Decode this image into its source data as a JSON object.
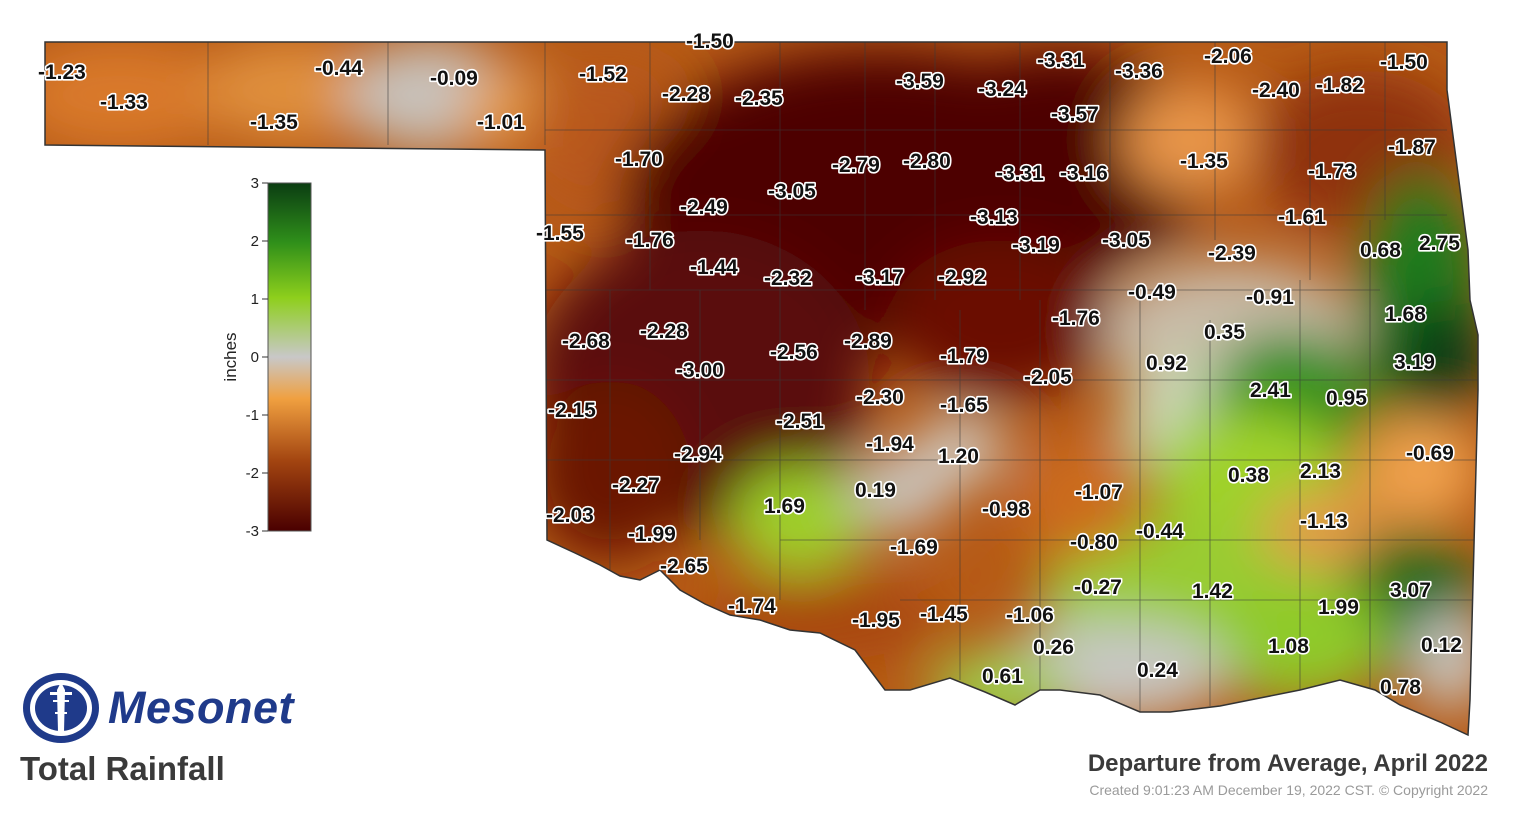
{
  "brand": {
    "name": "Mesonet",
    "logo_icon": "mesonet-tower-icon",
    "color": "#1f3a8a"
  },
  "product": "Total Rainfall",
  "map_title": "Departure from Average, April 2022",
  "created": "Created 9:01:23 AM December 19, 2022 CST. © Copyright 2022",
  "legend": {
    "unit": "inches",
    "ticks": [
      "3",
      "2",
      "1",
      "0",
      "-1",
      "-2",
      "-3"
    ],
    "colors": [
      "#0b3d12",
      "#2f8f1a",
      "#8ecf1c",
      "#c8c8c8",
      "#f0a040",
      "#a24410",
      "#4a0000"
    ]
  },
  "stations": [
    "-1.23",
    "-1.33",
    "-0.44",
    "-1.35",
    "-0.09",
    "-1.01",
    "-1.50",
    "-1.52",
    "-2.28",
    "-2.35",
    "-3.59",
    "-3.24",
    "-3.31",
    "-3.36",
    "-2.06",
    "-2.40",
    "-1.82",
    "-1.50",
    "-3.57",
    "-1.70",
    "-2.79",
    "-2.80",
    "-3.05",
    "-3.31",
    "-3.16",
    "-1.35",
    "-1.73",
    "-1.87",
    "-2.49",
    "-3.13",
    "-1.61",
    "-1.55",
    "-1.76",
    "-3.19",
    "-3.05",
    "-2.39",
    "0.68",
    "2.75",
    "-1.44",
    "-2.32",
    "-3.17",
    "-2.92",
    "-0.49",
    "-0.91",
    "-2.28",
    "-1.76",
    "0.35",
    "1.68",
    "-2.68",
    "-2.56",
    "-2.89",
    "-1.79",
    "0.92",
    "3.19",
    "-3.00",
    "-2.05",
    "2.41",
    "0.95",
    "-2.15",
    "-2.30",
    "-1.65",
    "-2.51",
    "-1.94",
    "1.20",
    "-2.94",
    "-0.69",
    "0.38",
    "2.13",
    "-2.27",
    "0.19",
    "-1.07",
    "1.69",
    "-2.03",
    "-0.98",
    "-1.13",
    "-1.99",
    "-1.69",
    "-0.80",
    "-0.44",
    "-2.65",
    "-0.27",
    "1.42",
    "3.07",
    "-1.74",
    "1.99",
    "-1.95",
    "-1.45",
    "-1.06",
    "0.26",
    "1.08",
    "0.12",
    "0.24",
    "0.61",
    "0.78"
  ]
}
